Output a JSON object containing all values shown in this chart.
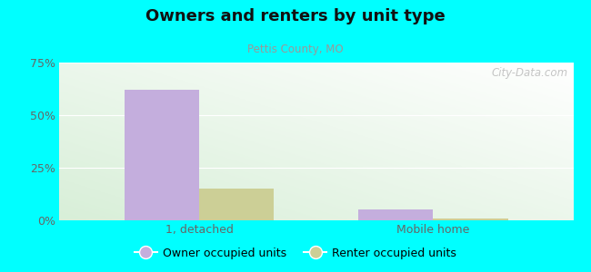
{
  "title": "Owners and renters by unit type",
  "subtitle": "Pettis County, MO",
  "categories": [
    "1, detached",
    "Mobile home"
  ],
  "owner_values": [
    62,
    5
  ],
  "renter_values": [
    15,
    1
  ],
  "owner_color": "#c4aedd",
  "renter_color": "#cccf96",
  "ylim": [
    0,
    75
  ],
  "yticks": [
    0,
    25,
    50,
    75
  ],
  "ytick_labels": [
    "0%",
    "25%",
    "50%",
    "75%"
  ],
  "bar_width": 0.32,
  "background_color": "#00ffff",
  "legend_owner": "Owner occupied units",
  "legend_renter": "Renter occupied units",
  "watermark": "City-Data.com"
}
